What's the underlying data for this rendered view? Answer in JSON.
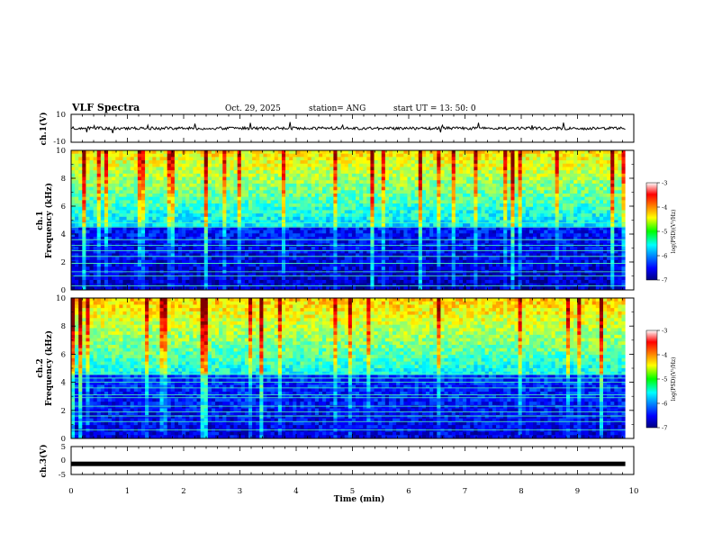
{
  "header": {
    "title": "VLF Spectra",
    "date": "Oct. 29, 2025",
    "station": "station= ANG",
    "start_time": "start  UT  =   13: 50: 0"
  },
  "chart_data": [
    {
      "type": "line",
      "name": "ch1-voltage",
      "ylabel": "ch.1(V)",
      "ylim": [
        -10,
        10
      ],
      "yticks": [
        "10",
        "-10"
      ],
      "baseline": 0,
      "description_values": [
        0
      ]
    },
    {
      "type": "heatmap",
      "name": "ch1-spectrogram",
      "ylabel_line1": "ch.1",
      "ylabel_line2": "Frequency  (kHz)",
      "ylim": [
        0,
        10
      ],
      "yticks": [
        "0",
        "2",
        "4",
        "6",
        "8",
        "10"
      ],
      "xlim": [
        0,
        10
      ],
      "colorbar": {
        "label": "log(PSD)(V²/Hz)",
        "range": [
          -7,
          -3
        ],
        "ticks": [
          "-3",
          "-4",
          "-5",
          "-6",
          "-7"
        ]
      }
    },
    {
      "type": "heatmap",
      "name": "ch2-spectrogram",
      "ylabel_line1": "ch.2",
      "ylabel_line2": "Frequency  (kHz)",
      "ylim": [
        0,
        10
      ],
      "yticks": [
        "0",
        "2",
        "4",
        "6",
        "8",
        "10"
      ],
      "xlim": [
        0,
        10
      ],
      "colorbar": {
        "label": "log(PSD)(V²/Hz)",
        "range": [
          -7,
          -3
        ],
        "ticks": [
          "-3",
          "-4",
          "-5",
          "-6",
          "-7"
        ]
      }
    },
    {
      "type": "line",
      "name": "ch3-voltage",
      "ylabel": "ch.3(V)",
      "ylim": [
        -5,
        5
      ],
      "yticks": [
        "5",
        "0",
        "-5"
      ],
      "baseline": -1.2
    }
  ],
  "xaxis": {
    "label": "Time  (min)",
    "ticks": [
      "0",
      "1",
      "2",
      "3",
      "4",
      "5",
      "6",
      "7",
      "8",
      "9",
      "10"
    ],
    "range": [
      0,
      10
    ],
    "data_end": 9.85
  },
  "colors": {
    "axis": "#000000",
    "background": "#ffffff"
  }
}
